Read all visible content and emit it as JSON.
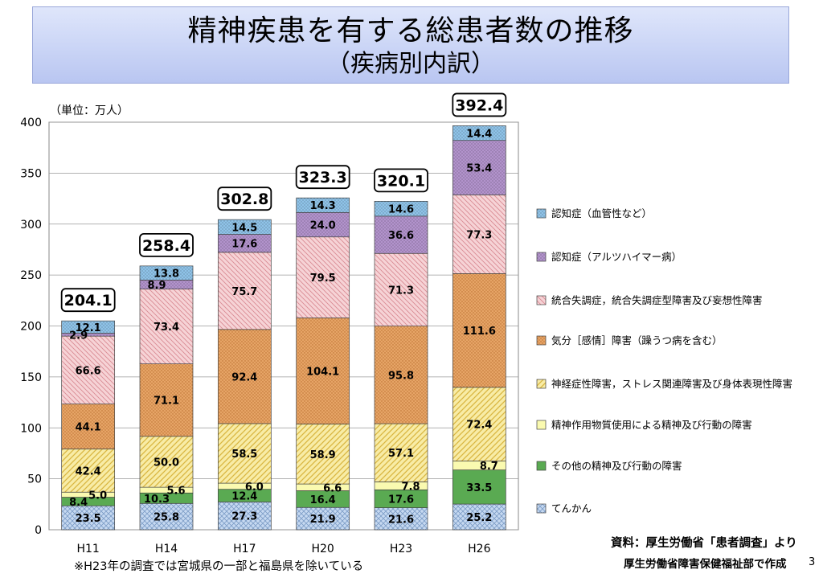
{
  "title": "精神疾患を有する総患者数の推移",
  "subtitle": "（疾病別内訳）",
  "footnote": "※H23年の調査では宮城県の一部と福島県を除いている",
  "source_line1": "資料：厚生労働省「患者調査」より",
  "source_line2": "厚生労働省障害保健福祉部で作成",
  "page_number": "3",
  "chart_data": {
    "type": "bar",
    "stacked": true,
    "unit_label": "（単位：万人）",
    "categories": [
      "H11",
      "H14",
      "H17",
      "H20",
      "H23",
      "H26"
    ],
    "ylim": [
      0,
      400
    ],
    "yticks": [
      0,
      50,
      100,
      150,
      200,
      250,
      300,
      350,
      400
    ],
    "totals": [
      "204.1",
      "258.4",
      "302.8",
      "323.3",
      "320.1",
      "392.4"
    ],
    "legend_position": "right",
    "series": [
      {
        "name": "てんかん",
        "color": "#c6d9f1",
        "pattern": "crosshatch",
        "values": [
          23.5,
          25.8,
          27.3,
          21.9,
          21.6,
          25.2
        ],
        "labels": [
          "23.5",
          "25.8",
          "27.3",
          "21.9",
          "21.6",
          "25.2"
        ]
      },
      {
        "name": "その他の精神及び行動の障害",
        "color": "#5aaa52",
        "pattern": "solid",
        "values": [
          8.4,
          10.3,
          12.4,
          16.4,
          17.6,
          33.5
        ],
        "labels": [
          "8.4",
          "10.3",
          "12.4",
          "16.4",
          "17.6",
          "33.5"
        ]
      },
      {
        "name": "精神作用物質使用による精神及び行動の障害",
        "color": "#fafab0",
        "pattern": "solid",
        "values": [
          5.0,
          5.6,
          6.0,
          6.6,
          7.8,
          8.7
        ],
        "labels": [
          "5.0",
          "5.6",
          "6.0",
          "6.6",
          "7.8",
          "8.7"
        ]
      },
      {
        "name": "神経症性障害，ストレス関連障害及び身体表現性障害",
        "color": "#f6e38c",
        "pattern": "diag-forward",
        "values": [
          42.4,
          50.0,
          58.5,
          58.9,
          57.1,
          72.4
        ],
        "labels": [
          "42.4",
          "50.0",
          "58.5",
          "58.9",
          "57.1",
          "72.4"
        ]
      },
      {
        "name": "気分［感情］障害（躁うつ病を含む）",
        "color": "#e2a05f",
        "pattern": "dots",
        "values": [
          44.1,
          71.1,
          92.4,
          104.1,
          95.8,
          111.6
        ],
        "labels": [
          "44.1",
          "71.1",
          "92.4",
          "104.1",
          "95.8",
          "111.6"
        ]
      },
      {
        "name": "統合失調症，統合失調症型障害及び妄想性障害",
        "color": "#f3c4c8",
        "pattern": "diag-back",
        "values": [
          66.6,
          73.4,
          75.7,
          79.5,
          71.3,
          77.3
        ],
        "labels": [
          "66.6",
          "73.4",
          "75.7",
          "79.5",
          "71.3",
          "77.3"
        ]
      },
      {
        "name": "認知症（アルツハイマー病）",
        "color": "#b293cc",
        "pattern": "dots-dark",
        "values": [
          2.9,
          8.9,
          17.6,
          24.0,
          36.6,
          53.4
        ],
        "labels": [
          "2.9",
          "8.9",
          "17.6",
          "24.0",
          "36.6",
          "53.4"
        ]
      },
      {
        "name": "認知症（血管性など）",
        "color": "#8fc3e8",
        "pattern": "dots-dark",
        "values": [
          12.1,
          13.8,
          14.5,
          14.3,
          14.6,
          14.4
        ],
        "labels": [
          "12.1",
          "13.8",
          "14.5",
          "14.3",
          "14.6",
          "14.4"
        ]
      }
    ]
  }
}
